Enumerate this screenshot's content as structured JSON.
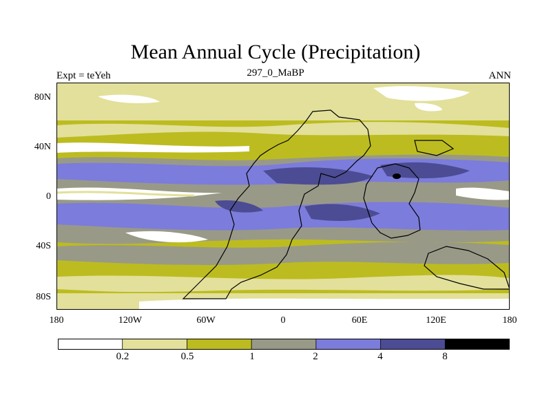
{
  "title": "Mean Annual Cycle (Precipitation)",
  "subtitle_left": "Expt = teYeh",
  "subtitle_center": "297_0_MaBP",
  "subtitle_right": "ANN",
  "lat_labels": [
    "80N",
    "40N",
    "0",
    "40S",
    "80S"
  ],
  "lon_labels": [
    "180",
    "120W",
    "60W",
    "0",
    "60E",
    "120E",
    "180"
  ],
  "colorbar": {
    "levels": [
      "0.2",
      "0.5",
      "1",
      "2",
      "4",
      "8"
    ],
    "colors": [
      "#ffffff",
      "#e2e09a",
      "#bcbc20",
      "#999988",
      "#7c7cdc",
      "#4c4c94",
      "#000000"
    ]
  }
}
